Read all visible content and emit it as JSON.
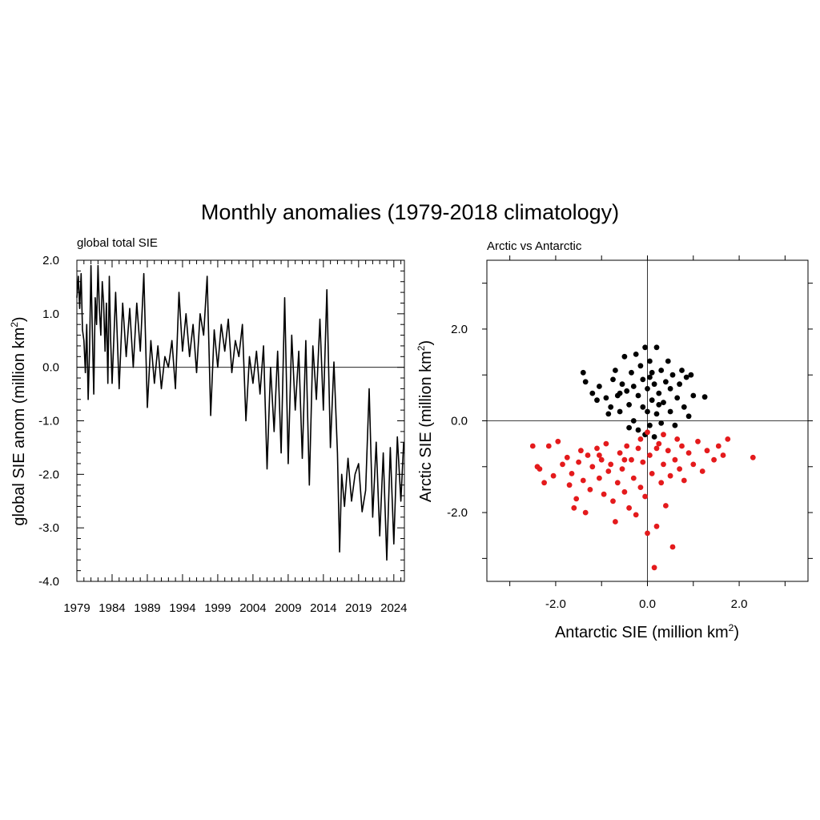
{
  "figure": {
    "title": "Monthly anomalies (1979-2018 climatology)"
  },
  "chart_data": [
    {
      "type": "line",
      "title": "global total SIE",
      "xlabel": "",
      "ylabel": "global SIE anom (million km",
      "ylabel_sup": "2",
      "ylabel_close": ")",
      "xlim": [
        1979,
        2025.5
      ],
      "ylim": [
        -4.0,
        2.0
      ],
      "x_ticks": [
        "1979",
        "1984",
        "1989",
        "1994",
        "1999",
        "2004",
        "2009",
        "2014",
        "2019",
        "2024"
      ],
      "x_tick_values": [
        1979,
        1984,
        1989,
        1994,
        1999,
        2004,
        2009,
        2014,
        2019,
        2024
      ],
      "y_ticks": [
        "2.0",
        "1.0",
        "0.0",
        "-1.0",
        "-2.0",
        "-3.0",
        "-4.0"
      ],
      "y_tick_values": [
        2.0,
        1.0,
        0.0,
        -1.0,
        -2.0,
        -3.0,
        -4.0
      ],
      "reference_line": 0,
      "line_color": "#000000",
      "series": [
        {
          "x": [
            1979.0,
            1979.2,
            1979.4,
            1979.6,
            1979.8,
            1980.0,
            1980.2,
            1980.4,
            1980.6,
            1980.8,
            1981.0,
            1981.2,
            1981.4,
            1981.6,
            1981.8,
            1982.0,
            1982.2,
            1982.4,
            1982.6,
            1982.8,
            1983.0,
            1983.2,
            1983.4,
            1983.6,
            1983.8,
            1984.0,
            1984.5,
            1985.0,
            1985.5,
            1986.0,
            1986.5,
            1987.0,
            1987.5,
            1988.0,
            1988.5,
            1989.0,
            1989.5,
            1990.0,
            1990.5,
            1991.0,
            1991.5,
            1992.0,
            1992.5,
            1993.0,
            1993.5,
            1994.0,
            1994.5,
            1995.0,
            1995.5,
            1996.0,
            1996.5,
            1997.0,
            1997.5,
            1998.0,
            1998.5,
            1999.0,
            1999.5,
            2000.0,
            2000.5,
            2001.0,
            2001.5,
            2002.0,
            2002.5,
            2003.0,
            2003.5,
            2004.0,
            2004.5,
            2005.0,
            2005.5,
            2006.0,
            2006.5,
            2007.0,
            2007.5,
            2008.0,
            2008.5,
            2009.0,
            2009.5,
            2010.0,
            2010.5,
            2011.0,
            2011.5,
            2012.0,
            2012.5,
            2013.0,
            2013.5,
            2014.0,
            2014.5,
            2015.0,
            2015.5,
            2016.0,
            2016.3,
            2016.6,
            2017.0,
            2017.5,
            2018.0,
            2018.5,
            2019.0,
            2019.5,
            2020.0,
            2020.5,
            2021.0,
            2021.5,
            2022.0,
            2022.5,
            2023.0,
            2023.5,
            2024.0,
            2024.5,
            2025.0,
            2025.4
          ],
          "y": [
            1.3,
            1.7,
            1.1,
            1.75,
            0.7,
            0.5,
            -0.1,
            0.8,
            -0.6,
            0.3,
            1.9,
            0.6,
            -0.5,
            1.3,
            0.8,
            1.9,
            1.1,
            0.6,
            1.6,
            1.2,
            0.3,
            1.2,
            -0.3,
            1.7,
            0.5,
            -0.3,
            1.4,
            -0.4,
            1.2,
            0.2,
            1.1,
            0.0,
            1.2,
            0.3,
            1.75,
            -0.75,
            0.5,
            -0.3,
            0.4,
            -0.4,
            0.2,
            0.0,
            0.5,
            -0.4,
            1.4,
            0.3,
            1.0,
            0.2,
            0.8,
            -0.1,
            1.0,
            0.6,
            1.7,
            -0.9,
            0.7,
            0.0,
            0.8,
            0.3,
            0.9,
            -0.1,
            0.5,
            0.2,
            0.8,
            -1.0,
            0.2,
            -0.3,
            0.3,
            -0.5,
            0.4,
            -1.9,
            0.0,
            -1.2,
            0.3,
            -1.6,
            1.3,
            -1.8,
            0.6,
            -0.8,
            0.3,
            -1.7,
            0.5,
            -2.2,
            0.4,
            -0.6,
            0.9,
            -0.8,
            1.45,
            -1.5,
            0.1,
            -1.6,
            -3.45,
            -2.0,
            -2.6,
            -1.7,
            -2.5,
            -2.0,
            -1.8,
            -2.7,
            -2.3,
            -0.4,
            -2.8,
            -1.4,
            -3.15,
            -1.6,
            -3.6,
            -1.5,
            -3.3,
            -1.3,
            -2.5,
            -1.4
          ]
        }
      ]
    },
    {
      "type": "scatter",
      "title": "Arctic vs Antarctic",
      "xlabel": "Antarctic SIE (million km",
      "xlabel_sup": "2",
      "xlabel_close": ")",
      "ylabel": "Arctic SIE (million km",
      "ylabel_sup": "2",
      "ylabel_close": ")",
      "xlim": [
        -3.5,
        3.5
      ],
      "ylim": [
        -3.5,
        3.5
      ],
      "x_ticks": [
        "-2.0",
        "0.0",
        "2.0"
      ],
      "x_tick_values": [
        -2.0,
        0.0,
        2.0
      ],
      "y_ticks": [
        "2.0",
        "0.0",
        "-2.0"
      ],
      "y_tick_values": [
        2.0,
        0.0,
        -2.0
      ],
      "reference_lines": {
        "x": 0,
        "y": 0
      },
      "series": [
        {
          "color": "#000000",
          "points": [
            [
              -1.4,
              1.05
            ],
            [
              -1.35,
              0.85
            ],
            [
              -1.2,
              0.6
            ],
            [
              -1.1,
              0.45
            ],
            [
              -1.05,
              0.75
            ],
            [
              -0.9,
              0.5
            ],
            [
              -0.8,
              0.3
            ],
            [
              -0.75,
              0.9
            ],
            [
              -0.7,
              1.1
            ],
            [
              -0.65,
              0.55
            ],
            [
              -0.6,
              0.2
            ],
            [
              -0.55,
              0.8
            ],
            [
              -0.5,
              1.4
            ],
            [
              -0.45,
              0.65
            ],
            [
              -0.4,
              0.35
            ],
            [
              -0.35,
              1.05
            ],
            [
              -0.3,
              0.0
            ],
            [
              -0.3,
              0.75
            ],
            [
              -0.25,
              1.45
            ],
            [
              -0.2,
              0.55
            ],
            [
              -0.2,
              -0.2
            ],
            [
              -0.15,
              1.2
            ],
            [
              -0.1,
              0.3
            ],
            [
              -0.1,
              0.9
            ],
            [
              -0.05,
              1.6
            ],
            [
              -0.05,
              -0.3
            ],
            [
              0.0,
              0.7
            ],
            [
              0.0,
              0.2
            ],
            [
              0.05,
              1.3
            ],
            [
              0.05,
              -0.1
            ],
            [
              0.1,
              1.05
            ],
            [
              0.1,
              0.45
            ],
            [
              0.15,
              0.8
            ],
            [
              0.15,
              -0.35
            ],
            [
              0.2,
              1.6
            ],
            [
              0.2,
              0.15
            ],
            [
              0.25,
              0.6
            ],
            [
              0.3,
              1.1
            ],
            [
              0.3,
              -0.05
            ],
            [
              0.35,
              0.4
            ],
            [
              0.4,
              0.85
            ],
            [
              0.45,
              1.3
            ],
            [
              0.5,
              0.2
            ],
            [
              0.5,
              0.7
            ],
            [
              0.55,
              1.0
            ],
            [
              0.6,
              -0.1
            ],
            [
              0.65,
              0.5
            ],
            [
              0.7,
              0.8
            ],
            [
              0.75,
              1.1
            ],
            [
              0.8,
              0.3
            ],
            [
              0.85,
              0.95
            ],
            [
              0.9,
              0.1
            ],
            [
              0.95,
              1.0
            ],
            [
              1.0,
              0.55
            ],
            [
              1.25,
              0.52
            ],
            [
              -0.85,
              0.15
            ],
            [
              -0.6,
              0.6
            ],
            [
              -0.4,
              -0.15
            ],
            [
              0.05,
              0.95
            ],
            [
              0.25,
              0.35
            ]
          ]
        },
        {
          "color": "#e41a1c",
          "points": [
            [
              -2.5,
              -0.55
            ],
            [
              -2.4,
              -1.0
            ],
            [
              -2.35,
              -1.05
            ],
            [
              -2.25,
              -1.35
            ],
            [
              -2.15,
              -0.55
            ],
            [
              -2.05,
              -1.2
            ],
            [
              -1.95,
              -0.45
            ],
            [
              -1.85,
              -0.95
            ],
            [
              -1.75,
              -0.8
            ],
            [
              -1.7,
              -1.4
            ],
            [
              -1.65,
              -1.15
            ],
            [
              -1.6,
              -1.9
            ],
            [
              -1.55,
              -1.7
            ],
            [
              -1.5,
              -0.9
            ],
            [
              -1.45,
              -0.65
            ],
            [
              -1.4,
              -1.3
            ],
            [
              -1.35,
              -2.0
            ],
            [
              -1.3,
              -0.75
            ],
            [
              -1.25,
              -1.5
            ],
            [
              -1.2,
              -1.0
            ],
            [
              -1.1,
              -0.6
            ],
            [
              -1.05,
              -1.25
            ],
            [
              -1.0,
              -0.85
            ],
            [
              -0.95,
              -1.6
            ],
            [
              -0.9,
              -0.5
            ],
            [
              -0.85,
              -1.1
            ],
            [
              -0.8,
              -0.95
            ],
            [
              -0.75,
              -1.75
            ],
            [
              -0.7,
              -2.2
            ],
            [
              -0.65,
              -1.35
            ],
            [
              -0.6,
              -0.7
            ],
            [
              -0.55,
              -1.05
            ],
            [
              -0.5,
              -1.55
            ],
            [
              -0.45,
              -0.55
            ],
            [
              -0.4,
              -1.9
            ],
            [
              -0.35,
              -0.85
            ],
            [
              -0.3,
              -1.25
            ],
            [
              -0.25,
              -2.05
            ],
            [
              -0.2,
              -0.6
            ],
            [
              -0.15,
              -1.45
            ],
            [
              -0.1,
              -0.9
            ],
            [
              -0.05,
              -1.65
            ],
            [
              0.0,
              -2.45
            ],
            [
              0.05,
              -0.75
            ],
            [
              0.1,
              -1.15
            ],
            [
              0.15,
              -3.2
            ],
            [
              0.2,
              -2.3
            ],
            [
              0.25,
              -0.5
            ],
            [
              0.3,
              -1.35
            ],
            [
              0.35,
              -0.95
            ],
            [
              0.4,
              -1.85
            ],
            [
              0.45,
              -0.65
            ],
            [
              0.5,
              -1.2
            ],
            [
              0.55,
              -2.75
            ],
            [
              0.6,
              -0.85
            ],
            [
              0.65,
              -0.4
            ],
            [
              0.7,
              -1.05
            ],
            [
              0.75,
              -0.55
            ],
            [
              0.8,
              -1.3
            ],
            [
              0.9,
              -0.7
            ],
            [
              1.0,
              -0.95
            ],
            [
              1.1,
              -0.45
            ],
            [
              1.2,
              -1.1
            ],
            [
              1.3,
              -0.65
            ],
            [
              1.45,
              -0.85
            ],
            [
              1.55,
              -0.55
            ],
            [
              1.65,
              -0.75
            ],
            [
              1.75,
              -0.4
            ],
            [
              2.3,
              -0.8
            ],
            [
              -0.15,
              -0.4
            ],
            [
              0.0,
              -0.25
            ],
            [
              0.2,
              -0.6
            ],
            [
              0.35,
              -0.3
            ],
            [
              -0.5,
              -0.85
            ],
            [
              -1.05,
              -0.75
            ]
          ]
        }
      ]
    }
  ]
}
